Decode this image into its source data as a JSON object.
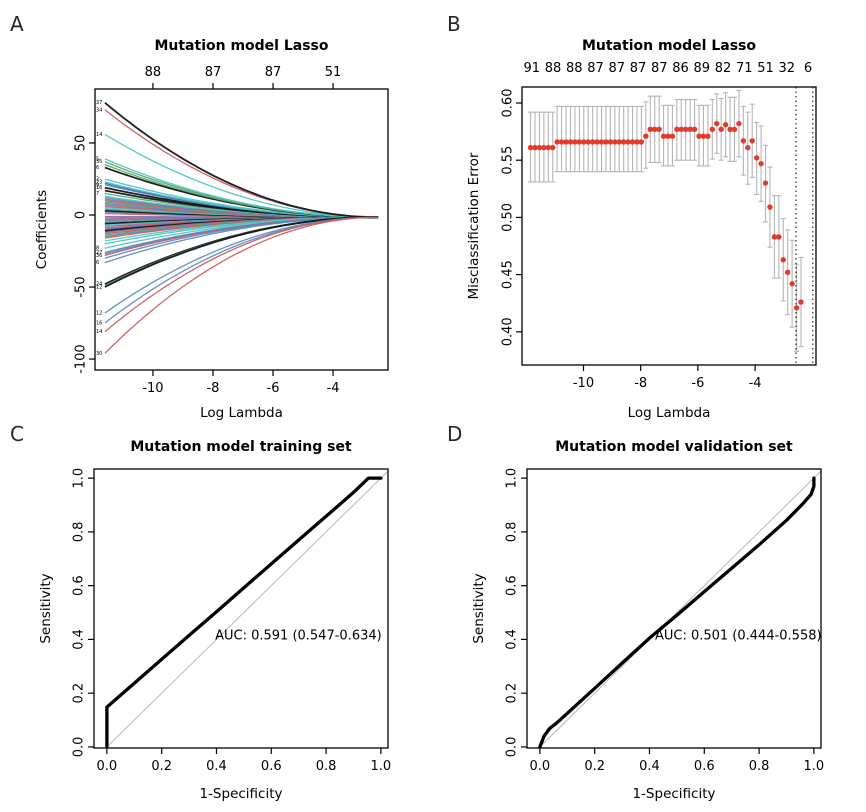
{
  "figure": {
    "background": "#ffffff",
    "panel_labels": [
      "A",
      "B",
      "C",
      "D"
    ]
  },
  "chart_data": [
    {
      "panel_label": "A",
      "type": "lasso_paths",
      "title": "Mutation model Lasso",
      "xlabel": "Log Lambda",
      "ylabel": "Coefficients",
      "xlim": [
        -11.93,
        -2.17
      ],
      "ylim": [
        -107.6,
        87.5
      ],
      "x_ticks": {
        "pos": [
          -10,
          -8,
          -6,
          -4
        ],
        "labels": [
          "-10",
          "-8",
          "-6",
          "-4"
        ]
      },
      "y_ticks": {
        "pos": [
          50,
          0,
          -50,
          -100
        ],
        "labels": [
          "50",
          "0",
          "-50",
          "-100"
        ]
      },
      "top_axis": {
        "pos": [
          -10,
          -8,
          -6,
          -4
        ],
        "labels": [
          "88",
          "87",
          "87",
          "51"
        ],
        "ticks": true
      },
      "path_start_x": -11.6,
      "path_end_x": -2.5,
      "path_end_value": -1.5,
      "curve_power": 2,
      "palette": {
        "k": "#141414",
        "r": "#cd5c5c",
        "c": "#4fc4c4",
        "g": "#55a868",
        "b": "#5b8ac2",
        "p": "#9270ad",
        "n": "#3f6fae"
      },
      "lines": [
        [
          78,
          "k"
        ],
        [
          73,
          "r"
        ],
        [
          56,
          "c"
        ],
        [
          39,
          "c"
        ],
        [
          37,
          "g"
        ],
        [
          35,
          "g"
        ],
        [
          33,
          "k"
        ],
        [
          25,
          "c"
        ],
        [
          23,
          "c"
        ],
        [
          22,
          "n"
        ],
        [
          21,
          "b"
        ],
        [
          19,
          "k"
        ],
        [
          17,
          "k"
        ],
        [
          15,
          "g"
        ],
        [
          13,
          "c"
        ],
        [
          12,
          "b"
        ],
        [
          11,
          "p"
        ],
        [
          10,
          "r"
        ],
        [
          9,
          "g"
        ],
        [
          8,
          "b"
        ],
        [
          7,
          "r"
        ],
        [
          6,
          "p"
        ],
        [
          5,
          "c"
        ],
        [
          4,
          "g"
        ],
        [
          3,
          "k"
        ],
        [
          2,
          "b"
        ],
        [
          1,
          "r"
        ],
        [
          -1,
          "p"
        ],
        [
          -2,
          "r"
        ],
        [
          -3,
          "p"
        ],
        [
          -4,
          "b"
        ],
        [
          -5,
          "g"
        ],
        [
          -6,
          "k"
        ],
        [
          -7,
          "c"
        ],
        [
          -8,
          "p"
        ],
        [
          -9,
          "r"
        ],
        [
          -10,
          "n"
        ],
        [
          -11,
          "k"
        ],
        [
          -12,
          "p"
        ],
        [
          -13,
          "r"
        ],
        [
          -14,
          "g"
        ],
        [
          -15,
          "b"
        ],
        [
          -16,
          "r"
        ],
        [
          -18,
          "c"
        ],
        [
          -20,
          "c"
        ],
        [
          -23,
          "c"
        ],
        [
          -26,
          "b"
        ],
        [
          -27,
          "b"
        ],
        [
          -28,
          "r"
        ],
        [
          -30,
          "b"
        ],
        [
          -33,
          "b"
        ],
        [
          -48,
          "k"
        ],
        [
          -49,
          "g"
        ],
        [
          -50,
          "k"
        ],
        [
          -68,
          "b"
        ],
        [
          -75,
          "b"
        ],
        [
          -81,
          "r"
        ],
        [
          -96,
          "r"
        ]
      ],
      "left_labels": [
        [
          "37",
          78
        ],
        [
          "34",
          73
        ],
        [
          "14",
          56
        ],
        [
          "5",
          39
        ],
        [
          "35",
          37
        ],
        [
          "6",
          33
        ],
        [
          "2",
          25
        ],
        [
          "23",
          23
        ],
        [
          "9",
          21
        ],
        [
          "16",
          19
        ],
        [
          "7",
          15
        ],
        [
          "8",
          -23
        ],
        [
          "27",
          -26
        ],
        [
          "36",
          -28
        ],
        [
          "6",
          -33
        ],
        [
          "24",
          -48
        ],
        [
          "12",
          -50
        ],
        [
          "12",
          -68
        ],
        [
          "16",
          -75
        ],
        [
          "14",
          -81
        ],
        [
          "30",
          -96
        ]
      ]
    },
    {
      "panel_label": "B",
      "type": "cv_errorbars",
      "title": "Mutation model Lasso",
      "xlabel": "Log Lambda",
      "ylabel": "Misclassification Error",
      "xlim": [
        -12.15,
        -1.87
      ],
      "ylim": [
        0.371,
        0.614
      ],
      "x_ticks": {
        "pos": [
          -10,
          -8,
          -6,
          -4
        ],
        "labels": [
          "-10",
          "-8",
          "-6",
          "-4"
        ]
      },
      "y_ticks": {
        "pos": [
          0.4,
          0.45,
          0.5,
          0.55,
          0.6
        ],
        "labels": [
          "0.40",
          "0.45",
          "0.50",
          "0.55",
          "0.60"
        ]
      },
      "top_axis": {
        "range": [
          -11.81,
          -2.15
        ],
        "labels": [
          "91",
          "88",
          "88",
          "87",
          "87",
          "87",
          "87",
          "86",
          "89",
          "82",
          "71",
          "51",
          "32",
          "6"
        ],
        "ticks": false
      },
      "point_color": "#e23b2e",
      "bar_color": "#b5b5b5",
      "vline_color": "#000000",
      "vlines": [
        -2.57,
        -1.98
      ],
      "points": [
        [
          -11.85,
          0.561,
          0.531,
          0.592
        ],
        [
          -11.695,
          0.561,
          0.531,
          0.592
        ],
        [
          -11.54,
          0.561,
          0.531,
          0.592
        ],
        [
          -11.385,
          0.561,
          0.531,
          0.592
        ],
        [
          -11.23,
          0.561,
          0.531,
          0.592
        ],
        [
          -11.075,
          0.561,
          0.531,
          0.592
        ],
        [
          -10.92,
          0.566,
          0.54,
          0.597
        ],
        [
          -10.765,
          0.566,
          0.54,
          0.597
        ],
        [
          -10.61,
          0.566,
          0.54,
          0.597
        ],
        [
          -10.455,
          0.566,
          0.54,
          0.597
        ],
        [
          -10.3,
          0.566,
          0.54,
          0.597
        ],
        [
          -10.145,
          0.566,
          0.54,
          0.597
        ],
        [
          -9.99,
          0.566,
          0.54,
          0.597
        ],
        [
          -9.835,
          0.566,
          0.54,
          0.597
        ],
        [
          -9.68,
          0.566,
          0.54,
          0.597
        ],
        [
          -9.525,
          0.566,
          0.54,
          0.597
        ],
        [
          -9.37,
          0.566,
          0.54,
          0.597
        ],
        [
          -9.215,
          0.566,
          0.54,
          0.597
        ],
        [
          -9.06,
          0.566,
          0.54,
          0.597
        ],
        [
          -8.905,
          0.566,
          0.54,
          0.597
        ],
        [
          -8.75,
          0.566,
          0.54,
          0.597
        ],
        [
          -8.595,
          0.566,
          0.54,
          0.597
        ],
        [
          -8.44,
          0.566,
          0.54,
          0.597
        ],
        [
          -8.285,
          0.566,
          0.54,
          0.597
        ],
        [
          -8.13,
          0.566,
          0.54,
          0.597
        ],
        [
          -7.975,
          0.566,
          0.54,
          0.597
        ],
        [
          -7.82,
          0.571,
          0.543,
          0.601
        ],
        [
          -7.665,
          0.577,
          0.548,
          0.606
        ],
        [
          -7.51,
          0.577,
          0.548,
          0.606
        ],
        [
          -7.355,
          0.577,
          0.548,
          0.606
        ],
        [
          -7.2,
          0.571,
          0.545,
          0.598
        ],
        [
          -7.045,
          0.571,
          0.545,
          0.598
        ],
        [
          -6.89,
          0.571,
          0.545,
          0.598
        ],
        [
          -6.735,
          0.577,
          0.55,
          0.603
        ],
        [
          -6.58,
          0.577,
          0.55,
          0.603
        ],
        [
          -6.425,
          0.577,
          0.55,
          0.603
        ],
        [
          -6.27,
          0.577,
          0.55,
          0.603
        ],
        [
          -6.115,
          0.577,
          0.55,
          0.603
        ],
        [
          -5.96,
          0.571,
          0.545,
          0.598
        ],
        [
          -5.805,
          0.571,
          0.545,
          0.598
        ],
        [
          -5.65,
          0.571,
          0.545,
          0.598
        ],
        [
          -5.495,
          0.577,
          0.551,
          0.603
        ],
        [
          -5.34,
          0.582,
          0.556,
          0.608
        ],
        [
          -5.185,
          0.577,
          0.55,
          0.604
        ],
        [
          -5.03,
          0.581,
          0.553,
          0.609
        ],
        [
          -4.875,
          0.577,
          0.549,
          0.605
        ],
        [
          -4.72,
          0.577,
          0.549,
          0.605
        ],
        [
          -4.565,
          0.582,
          0.553,
          0.611
        ],
        [
          -4.41,
          0.567,
          0.537,
          0.597
        ],
        [
          -4.255,
          0.561,
          0.529,
          0.592
        ],
        [
          -4.1,
          0.567,
          0.535,
          0.599
        ],
        [
          -3.945,
          0.552,
          0.52,
          0.583
        ],
        [
          -3.79,
          0.547,
          0.514,
          0.58
        ],
        [
          -3.635,
          0.53,
          0.496,
          0.563
        ],
        [
          -3.48,
          0.509,
          0.474,
          0.544
        ],
        [
          -3.325,
          0.483,
          0.447,
          0.519
        ],
        [
          -3.17,
          0.483,
          0.447,
          0.519
        ],
        [
          -3.015,
          0.463,
          0.427,
          0.499
        ],
        [
          -2.86,
          0.452,
          0.415,
          0.489
        ],
        [
          -2.705,
          0.442,
          0.404,
          0.48
        ],
        [
          -2.55,
          0.421,
          0.383,
          0.459
        ],
        [
          -2.395,
          0.426,
          0.387,
          0.465
        ]
      ]
    },
    {
      "panel_label": "C",
      "type": "roc",
      "title": "Mutation model training set",
      "xlabel": "1-Specificity",
      "ylabel": "Sensitivity",
      "xlim": [
        -0.047,
        1.026
      ],
      "ylim": [
        -0.004,
        1.034
      ],
      "x_ticks": {
        "pos": [
          0.0,
          0.2,
          0.4,
          0.6,
          0.8,
          1.0
        ],
        "labels": [
          "0.0",
          "0.2",
          "0.4",
          "0.6",
          "0.8",
          "1.0"
        ]
      },
      "y_ticks": {
        "pos": [
          0.0,
          0.2,
          0.4,
          0.6,
          0.8,
          1.0
        ],
        "labels": [
          "0.0",
          "0.2",
          "0.4",
          "0.6",
          "0.8",
          "1.0"
        ]
      },
      "auc_text": "AUC:  0.591 (0.547-0.634)",
      "auc_pos": [
        0.395,
        0.4
      ],
      "auc_color": "#3d52a5",
      "curve_color": "#000000",
      "diag_color": "#b9b9b9",
      "roc_points": [
        [
          0,
          0
        ],
        [
          0,
          0.148
        ],
        [
          0.1,
          0.237
        ],
        [
          0.2,
          0.326
        ],
        [
          0.3,
          0.415
        ],
        [
          0.4,
          0.503
        ],
        [
          0.5,
          0.592
        ],
        [
          0.6,
          0.681
        ],
        [
          0.7,
          0.77
        ],
        [
          0.8,
          0.858
        ],
        [
          0.9,
          0.947
        ],
        [
          0.955,
          1.0
        ],
        [
          1,
          1
        ]
      ]
    },
    {
      "panel_label": "D",
      "type": "roc",
      "title": "Mutation model validation set",
      "xlabel": "1-Specificity",
      "ylabel": "Sensitivity",
      "xlim": [
        -0.047,
        1.026
      ],
      "ylim": [
        -0.004,
        1.034
      ],
      "x_ticks": {
        "pos": [
          0.0,
          0.2,
          0.4,
          0.6,
          0.8,
          1.0
        ],
        "labels": [
          "0.0",
          "0.2",
          "0.4",
          "0.6",
          "0.8",
          "1.0"
        ]
      },
      "y_ticks": {
        "pos": [
          0.0,
          0.2,
          0.4,
          0.6,
          0.8,
          1.0
        ],
        "labels": [
          "0.0",
          "0.2",
          "0.4",
          "0.6",
          "0.8",
          "1.0"
        ]
      },
      "auc_text": "AUC:  0.501 (0.444-0.558)",
      "auc_pos": [
        0.42,
        0.4
      ],
      "auc_color": "#3d52a5",
      "curve_color": "#000000",
      "diag_color": "#b9b9b9",
      "roc_points": [
        [
          0,
          0
        ],
        [
          0.015,
          0.04
        ],
        [
          0.035,
          0.068
        ],
        [
          0.06,
          0.088
        ],
        [
          0.1,
          0.125
        ],
        [
          0.2,
          0.218
        ],
        [
          0.3,
          0.312
        ],
        [
          0.4,
          0.405
        ],
        [
          0.5,
          0.49
        ],
        [
          0.6,
          0.578
        ],
        [
          0.7,
          0.665
        ],
        [
          0.8,
          0.752
        ],
        [
          0.9,
          0.843
        ],
        [
          0.96,
          0.905
        ],
        [
          0.99,
          0.94
        ],
        [
          1,
          0.97
        ],
        [
          1,
          1
        ]
      ]
    }
  ]
}
